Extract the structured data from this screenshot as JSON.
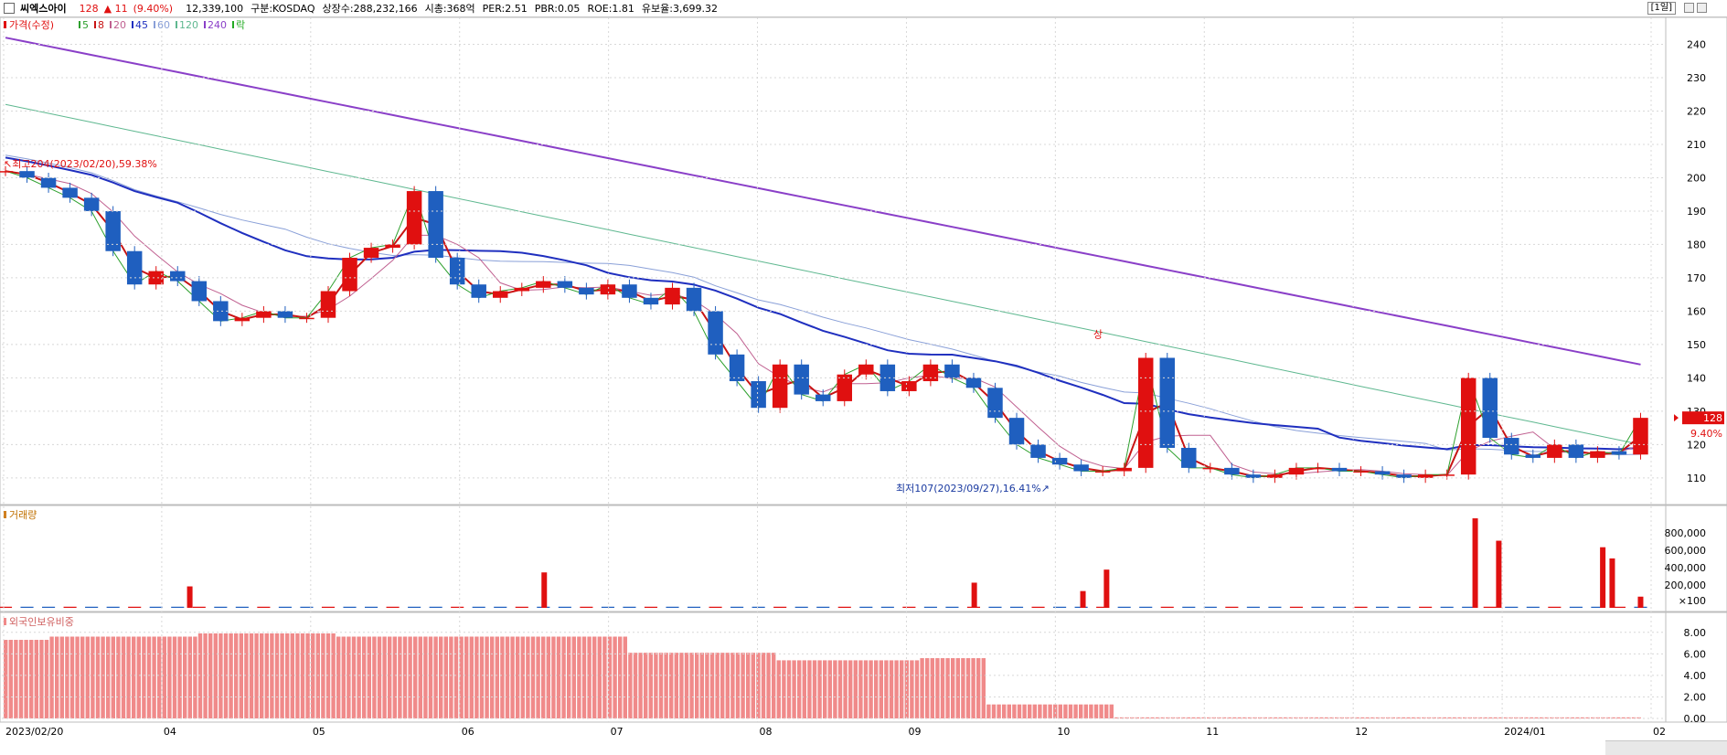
{
  "header": {
    "stock_name": "씨엑스아이",
    "price": "128",
    "change": "▲ 11",
    "change_pct": "(9.40%)",
    "volume": "12,339,100",
    "market": "구분:KOSDAQ",
    "shares": "상장수:288,232,166",
    "mktcap": "시총:368억",
    "per": "PER:2.51",
    "pbr": "PBR:0.05",
    "roe": "ROE:1.81",
    "reserve": "유보율:3,699.32",
    "period": "[1일]"
  },
  "colors": {
    "up": "#e01010",
    "down": "#1f5fbf",
    "ma5": "#2ea02e",
    "ma8": "#c81414",
    "ma20": "#c06090",
    "ma45": "#1f2fbf",
    "ma60": "#8aa0d8",
    "ma120": "#5fb890",
    "ma240": "#8a3fc8",
    "foreign": "#f08a8a"
  },
  "legend": {
    "price_label": "가격(수정)",
    "ma": [
      "5",
      "8",
      "20",
      "45",
      "60",
      "120",
      "240"
    ],
    "lak": "락",
    "volume_label": "거래량",
    "foreign_label": "외국인보유비중"
  },
  "annotations": {
    "high": "최고204(2023/02/20),59.38%",
    "low": "최저107(2023/09/27),16.41%",
    "upper_limit": "상",
    "last_price": "128",
    "last_pct": "9.40%"
  },
  "chart_data": [
    {
      "type": "candlestick",
      "title": "",
      "x_ticks": [
        "2023/02/20",
        "04",
        "05",
        "06",
        "07",
        "08",
        "09",
        "10",
        "11",
        "12",
        "2024/01",
        "02"
      ],
      "y_ticks": [
        110,
        120,
        130,
        140,
        150,
        160,
        170,
        180,
        190,
        200,
        210,
        220,
        230,
        240
      ],
      "ylim": [
        102,
        247
      ],
      "close_approx": [
        202,
        200,
        197,
        194,
        190,
        178,
        168,
        172,
        169,
        163,
        157,
        158,
        160,
        158,
        158,
        166,
        176,
        179,
        180,
        196,
        176,
        168,
        164,
        166,
        167,
        169,
        167,
        165,
        168,
        164,
        162,
        167,
        160,
        147,
        139,
        131,
        144,
        135,
        133,
        141,
        144,
        136,
        139,
        144,
        140,
        137,
        128,
        120,
        116,
        114,
        112,
        112,
        113,
        146,
        119,
        113,
        113,
        111,
        110,
        111,
        113,
        113,
        112,
        112,
        111,
        110,
        111,
        111,
        140,
        122,
        117,
        116,
        120,
        116,
        118,
        117,
        128
      ],
      "high": 204,
      "high_date": "2023/02/20",
      "low": 107,
      "low_date": "2023/09/27",
      "last": 128
    },
    {
      "type": "bar",
      "title": "거래량",
      "y_ticks": [
        "800,000",
        "600,000",
        "400,000",
        "200,000"
      ],
      "unit": "×100",
      "spikes_approx": [
        {
          "date": "2023/03/31",
          "value": 230000
        },
        {
          "date": "2023/06/14",
          "value": 380000
        },
        {
          "date": "2023/09/13",
          "value": 270000
        },
        {
          "date": "2023/10/06",
          "value": 180000
        },
        {
          "date": "2023/10/11",
          "value": 410000
        },
        {
          "date": "2023/12/28",
          "value": 960000
        },
        {
          "date": "2024/01/02",
          "value": 720000
        },
        {
          "date": "2024/01/24",
          "value": 650000
        },
        {
          "date": "2024/01/26",
          "value": 530000
        },
        {
          "date": "2024/02/01",
          "value": 120000
        }
      ]
    },
    {
      "type": "bar",
      "title": "외국인보유비중",
      "y_ticks": [
        "8.00",
        "6.00",
        "4.00",
        "2.00",
        "0.00"
      ],
      "ylim": [
        0,
        9
      ],
      "levels_approx": [
        {
          "from": "2023/02",
          "value": 7.3
        },
        {
          "from": "2023/03",
          "value": 7.6
        },
        {
          "from": "2023/04",
          "value": 7.9
        },
        {
          "from": "2023/05",
          "value": 7.6
        },
        {
          "from": "2023/07",
          "value": 6.1
        },
        {
          "from": "2023/08",
          "value": 5.4
        },
        {
          "from": "2023/09",
          "value": 5.6
        },
        {
          "from": "2023/09/15",
          "value": 1.3
        },
        {
          "from": "2023/10/12",
          "value": 0.1
        }
      ]
    }
  ]
}
